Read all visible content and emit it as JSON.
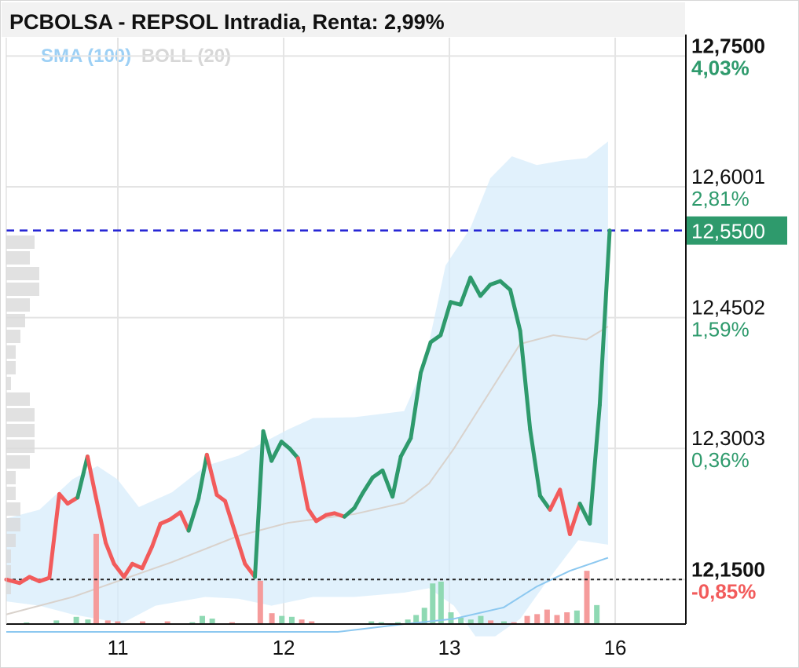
{
  "title": "PCBOLSA - REPSOL Intradia, Renta: 2,99%",
  "legend": [
    {
      "label": "SMA (100)",
      "color": "#9dd0f5"
    },
    {
      "label": "BOLL (20)",
      "color": "#d7d7d7"
    }
  ],
  "colors": {
    "up": "#2e9a6c",
    "down": "#f25b5b",
    "ref_line": "#2323d4",
    "base_line": "#222222"
  },
  "chart_data": {
    "type": "line",
    "x_ticks": [
      {
        "label": "11",
        "x": 5.5
      },
      {
        "label": "12",
        "x": 15.5
      },
      {
        "label": "13",
        "x": 25.5
      },
      {
        "label": "16",
        "x": 35.5
      }
    ],
    "ylim": [
      12.099,
      12.771
    ],
    "y_ticks": [
      {
        "price": "12,7500",
        "pct": "4,03%",
        "value": 12.75,
        "bold": true
      },
      {
        "price": "12,6001",
        "pct": "2,81%",
        "value": 12.6001,
        "bold": false
      },
      {
        "price": "12,4502",
        "pct": "1,59%",
        "value": 12.4502,
        "bold": false
      },
      {
        "price": "12,3003",
        "pct": "0,36%",
        "value": 12.3003,
        "bold": false
      },
      {
        "price": "12,1500",
        "pct": "-0,85%",
        "value": 12.15,
        "bold": true
      }
    ],
    "current_price": {
      "label": "12,5500",
      "value": 12.55
    },
    "reference_price": 12.15,
    "series": [
      {
        "values": [
          [
            0,
            12.15,
            "down"
          ],
          [
            0.8,
            12.146,
            "down"
          ],
          [
            1.4,
            12.153,
            "down"
          ],
          [
            2.0,
            12.148,
            "down"
          ],
          [
            2.6,
            12.152,
            "down"
          ],
          [
            3.2,
            12.248,
            "down"
          ],
          [
            3.7,
            12.237,
            "down"
          ],
          [
            4.3,
            12.244,
            "down"
          ],
          [
            4.9,
            12.291,
            "up"
          ],
          [
            5.4,
            12.245,
            "down"
          ],
          [
            6.0,
            12.192,
            "down"
          ],
          [
            6.5,
            12.168,
            "down"
          ],
          [
            7.1,
            12.153,
            "down"
          ],
          [
            7.6,
            12.168,
            "down"
          ],
          [
            8.2,
            12.163,
            "down"
          ],
          [
            8.8,
            12.188,
            "down"
          ],
          [
            9.3,
            12.214,
            "down"
          ],
          [
            9.9,
            12.219,
            "down"
          ],
          [
            10.5,
            12.227,
            "down"
          ],
          [
            11.0,
            12.206,
            "down"
          ],
          [
            11.6,
            12.243,
            "up"
          ],
          [
            12.1,
            12.293,
            "up"
          ],
          [
            12.7,
            12.247,
            "down"
          ],
          [
            13.2,
            12.24,
            "down"
          ],
          [
            13.8,
            12.204,
            "down"
          ],
          [
            14.4,
            12.168,
            "down"
          ],
          [
            15.0,
            12.153,
            "down"
          ],
          [
            15.5,
            12.32,
            "up"
          ],
          [
            16.0,
            12.286,
            "up"
          ],
          [
            16.6,
            12.308,
            "up"
          ],
          [
            17.1,
            12.3,
            "up"
          ],
          [
            17.6,
            12.289,
            "up"
          ],
          [
            18.2,
            12.231,
            "down"
          ],
          [
            18.7,
            12.217,
            "down"
          ],
          [
            19.3,
            12.224,
            "down"
          ],
          [
            19.8,
            12.226,
            "down"
          ],
          [
            20.4,
            12.222,
            "down"
          ],
          [
            21.0,
            12.232,
            "up"
          ],
          [
            21.5,
            12.249,
            "up"
          ],
          [
            22.1,
            12.267,
            "up"
          ],
          [
            22.7,
            12.275,
            "up"
          ],
          [
            23.3,
            12.245,
            "up"
          ],
          [
            23.8,
            12.291,
            "up"
          ],
          [
            24.4,
            12.312,
            "up"
          ],
          [
            25.0,
            12.387,
            "up"
          ],
          [
            25.6,
            12.422,
            "up"
          ],
          [
            26.2,
            12.43,
            "up"
          ],
          [
            26.8,
            12.468,
            "up"
          ],
          [
            27.4,
            12.465,
            "up"
          ],
          [
            28.0,
            12.496,
            "up"
          ],
          [
            28.6,
            12.475,
            "up"
          ],
          [
            29.2,
            12.488,
            "up"
          ],
          [
            29.8,
            12.492,
            "up"
          ],
          [
            30.4,
            12.482,
            "up"
          ],
          [
            31.0,
            12.435,
            "up"
          ],
          [
            31.6,
            12.322,
            "up"
          ],
          [
            32.2,
            12.246,
            "up"
          ],
          [
            32.8,
            12.23,
            "up"
          ],
          [
            33.4,
            12.253,
            "down"
          ],
          [
            34.0,
            12.202,
            "down"
          ],
          [
            34.6,
            12.237,
            "down"
          ],
          [
            35.2,
            12.214,
            "up"
          ],
          [
            35.8,
            12.35,
            "up"
          ],
          [
            36.4,
            12.55,
            "up"
          ]
        ]
      }
    ],
    "volume": [
      {
        "x": 1.2,
        "v": 0.01,
        "c": "up"
      },
      {
        "x": 3.0,
        "v": 0.04,
        "c": "up"
      },
      {
        "x": 4.2,
        "v": 0.08,
        "c": "up"
      },
      {
        "x": 4.9,
        "v": 0.05,
        "c": "up"
      },
      {
        "x": 5.4,
        "v": 1.0,
        "c": "down"
      },
      {
        "x": 6.1,
        "v": 0.04,
        "c": "down"
      },
      {
        "x": 6.7,
        "v": 0.03,
        "c": "down"
      },
      {
        "x": 8.2,
        "v": 0.03,
        "c": "down"
      },
      {
        "x": 9.7,
        "v": 0.03,
        "c": "down"
      },
      {
        "x": 11.2,
        "v": 0.02,
        "c": "up"
      },
      {
        "x": 11.8,
        "v": 0.09,
        "c": "up"
      },
      {
        "x": 12.4,
        "v": 0.06,
        "c": "up"
      },
      {
        "x": 13.6,
        "v": 0.02,
        "c": "down"
      },
      {
        "x": 15.3,
        "v": 0.48,
        "c": "down"
      },
      {
        "x": 16.0,
        "v": 0.12,
        "c": "down"
      },
      {
        "x": 16.6,
        "v": 0.09,
        "c": "up"
      },
      {
        "x": 17.2,
        "v": 0.08,
        "c": "up"
      },
      {
        "x": 17.8,
        "v": 0.05,
        "c": "down"
      },
      {
        "x": 18.4,
        "v": 0.03,
        "c": "down"
      },
      {
        "x": 22.0,
        "v": 0.03,
        "c": "up"
      },
      {
        "x": 22.6,
        "v": 0.02,
        "c": "up"
      },
      {
        "x": 23.6,
        "v": 0.02,
        "c": "up"
      },
      {
        "x": 24.2,
        "v": 0.05,
        "c": "up"
      },
      {
        "x": 24.7,
        "v": 0.1,
        "c": "up"
      },
      {
        "x": 25.2,
        "v": 0.18,
        "c": "up"
      },
      {
        "x": 25.7,
        "v": 0.45,
        "c": "up"
      },
      {
        "x": 26.2,
        "v": 0.47,
        "c": "up"
      },
      {
        "x": 26.8,
        "v": 0.13,
        "c": "up"
      },
      {
        "x": 27.4,
        "v": 0.07,
        "c": "up"
      },
      {
        "x": 28.0,
        "v": 0.05,
        "c": "up"
      },
      {
        "x": 28.6,
        "v": 0.09,
        "c": "up"
      },
      {
        "x": 29.2,
        "v": 0.04,
        "c": "down"
      },
      {
        "x": 30.0,
        "v": 0.03,
        "c": "up"
      },
      {
        "x": 30.6,
        "v": 0.02,
        "c": "down"
      },
      {
        "x": 31.4,
        "v": 0.09,
        "c": "down"
      },
      {
        "x": 32.0,
        "v": 0.11,
        "c": "down"
      },
      {
        "x": 32.6,
        "v": 0.16,
        "c": "down"
      },
      {
        "x": 33.2,
        "v": 0.1,
        "c": "down"
      },
      {
        "x": 33.8,
        "v": 0.13,
        "c": "down"
      },
      {
        "x": 34.4,
        "v": 0.15,
        "c": "up"
      },
      {
        "x": 35.0,
        "v": 0.59,
        "c": "down"
      },
      {
        "x": 35.6,
        "v": 0.21,
        "c": "up"
      }
    ],
    "sma": [
      [
        0,
        12.09
      ],
      [
        5,
        12.09
      ],
      [
        10,
        12.09
      ],
      [
        20,
        12.09
      ],
      [
        24,
        12.099
      ],
      [
        27,
        12.105
      ],
      [
        30,
        12.118
      ],
      [
        32,
        12.142
      ],
      [
        34,
        12.16
      ],
      [
        36.3,
        12.175
      ]
    ],
    "boll_upper": [
      [
        0,
        12.22
      ],
      [
        2,
        12.23
      ],
      [
        4,
        12.265
      ],
      [
        5.5,
        12.28
      ],
      [
        6.7,
        12.265
      ],
      [
        8,
        12.233
      ],
      [
        10,
        12.25
      ],
      [
        12,
        12.28
      ],
      [
        14,
        12.292
      ],
      [
        15.5,
        12.307
      ],
      [
        17,
        12.322
      ],
      [
        18.5,
        12.335
      ],
      [
        21,
        12.336
      ],
      [
        24,
        12.343
      ],
      [
        25.2,
        12.395
      ],
      [
        26.5,
        12.51
      ],
      [
        28,
        12.553
      ],
      [
        29.2,
        12.61
      ],
      [
        30.5,
        12.635
      ],
      [
        32,
        12.625
      ],
      [
        33.5,
        12.63
      ],
      [
        35,
        12.633
      ],
      [
        36.3,
        12.652
      ]
    ],
    "boll_lower": [
      [
        0,
        12.125
      ],
      [
        2,
        12.12
      ],
      [
        4,
        12.11
      ],
      [
        5.5,
        12.105
      ],
      [
        7,
        12.1
      ],
      [
        9,
        12.12
      ],
      [
        12,
        12.13
      ],
      [
        14,
        12.128
      ],
      [
        16,
        12.12
      ],
      [
        18.5,
        12.13
      ],
      [
        21,
        12.13
      ],
      [
        24,
        12.135
      ],
      [
        25.5,
        12.14
      ],
      [
        27,
        12.12
      ],
      [
        28.3,
        12.085
      ],
      [
        29.5,
        12.085
      ],
      [
        31,
        12.105
      ],
      [
        32.5,
        12.145
      ],
      [
        34.5,
        12.195
      ],
      [
        36.3,
        12.19
      ]
    ],
    "boll_mid": [
      [
        0,
        12.11
      ],
      [
        4,
        12.13
      ],
      [
        7,
        12.15
      ],
      [
        10,
        12.17
      ],
      [
        14,
        12.2
      ],
      [
        17,
        12.215
      ],
      [
        21,
        12.225
      ],
      [
        24,
        12.238
      ],
      [
        25.5,
        12.26
      ],
      [
        27,
        12.3
      ],
      [
        29,
        12.36
      ],
      [
        31,
        12.42
      ],
      [
        33,
        12.43
      ],
      [
        35,
        12.425
      ],
      [
        36.3,
        12.44
      ]
    ],
    "left_profile": [
      0.06,
      0.05,
      0.07,
      0.07,
      0.05,
      0.04,
      0.03,
      0.02,
      0.02,
      0.01,
      0.05,
      0.06,
      0.06,
      0.06,
      0.05,
      0.02,
      0.02,
      0.03,
      0.03,
      0.02,
      0.01,
      0.01,
      0.01
    ]
  }
}
